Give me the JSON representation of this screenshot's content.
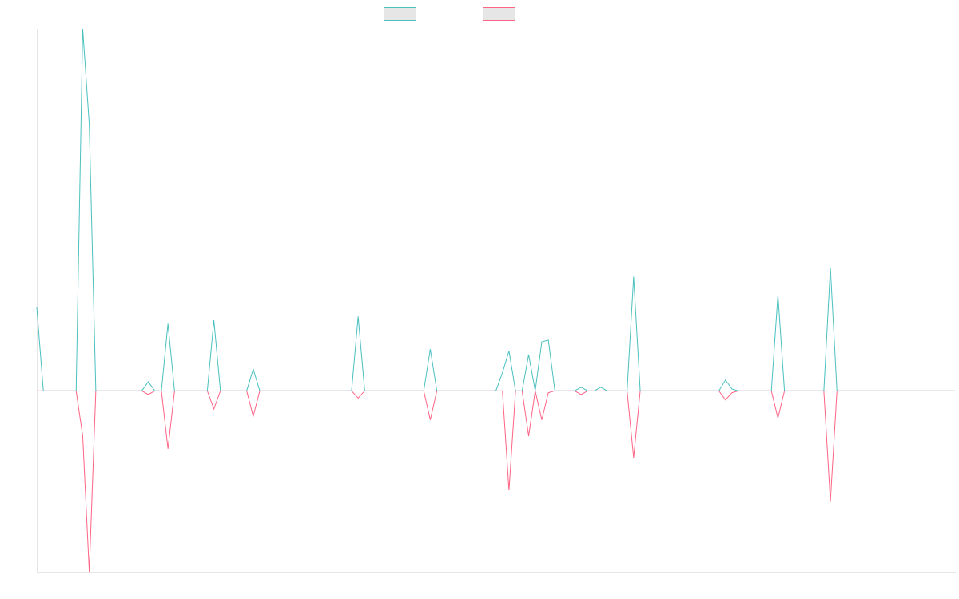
{
  "chart_data": {
    "type": "line",
    "categories": [
      null,
      null,
      null,
      null,
      null,
      null,
      null,
      null,
      null,
      null,
      null,
      null,
      null,
      null,
      null,
      null,
      null,
      null,
      null,
      null,
      null,
      null,
      null,
      null,
      null,
      null,
      null,
      null,
      null,
      null,
      null,
      null,
      null,
      null,
      null,
      null,
      null,
      null,
      null,
      null,
      null,
      null,
      null,
      null,
      null,
      null,
      null,
      null,
      null,
      null,
      null,
      null,
      null,
      null,
      null,
      null,
      null,
      null,
      null,
      null,
      null,
      null,
      null,
      null,
      null,
      null,
      null,
      null,
      null,
      null,
      null,
      null,
      null,
      null,
      null,
      null,
      null,
      null,
      null,
      null,
      null,
      null,
      null,
      null,
      null,
      null,
      null,
      null,
      null,
      null,
      null,
      null,
      null,
      null,
      null,
      null,
      null,
      null,
      null,
      null,
      null,
      null,
      null,
      null,
      null,
      null,
      null,
      null,
      null,
      null,
      null,
      null,
      null,
      null,
      null,
      null,
      null,
      null,
      null,
      null,
      null,
      null,
      null,
      null,
      null,
      null,
      null,
      null,
      null,
      null,
      null,
      null,
      null,
      null,
      null,
      null,
      null,
      null,
      null,
      null,
      null
    ],
    "series": [
      {
        "color": "#4bc0c0",
        "values": [
          46,
          0,
          0,
          0,
          0,
          0,
          0,
          200,
          147,
          0,
          0,
          0,
          0,
          0,
          0,
          0,
          0,
          5,
          0,
          0,
          37,
          0,
          0,
          0,
          0,
          0,
          0,
          39,
          0,
          0,
          0,
          0,
          0,
          12,
          0,
          0,
          0,
          0,
          0,
          0,
          0,
          0,
          0,
          0,
          0,
          0,
          0,
          0,
          0,
          41,
          0,
          0,
          0,
          0,
          0,
          0,
          0,
          0,
          0,
          0,
          23,
          0,
          0,
          0,
          0,
          0,
          0,
          0,
          0,
          0,
          0,
          10,
          22,
          0,
          0,
          20,
          0,
          27,
          28,
          0,
          0,
          0,
          0,
          2,
          0,
          0,
          2,
          0,
          0,
          0,
          0,
          63,
          0,
          0,
          0,
          0,
          0,
          0,
          0,
          0,
          0,
          0,
          0,
          0,
          0,
          6,
          1,
          0,
          0,
          0,
          0,
          0,
          0,
          53,
          0,
          0,
          0,
          0,
          0,
          0,
          0,
          68,
          0,
          0,
          0,
          0,
          0,
          0,
          0,
          0,
          0,
          0,
          0,
          0,
          0,
          0,
          0,
          0,
          0,
          0,
          0
        ]
      },
      {
        "color": "#ff6384",
        "values": [
          0,
          0,
          0,
          0,
          0,
          0,
          0,
          -25,
          -100,
          0,
          0,
          0,
          0,
          0,
          0,
          0,
          0,
          -2,
          0,
          0,
          -32,
          0,
          0,
          0,
          0,
          0,
          0,
          -10,
          0,
          0,
          0,
          0,
          0,
          -14,
          0,
          0,
          0,
          0,
          0,
          0,
          0,
          0,
          0,
          0,
          0,
          0,
          0,
          0,
          0,
          -4,
          0,
          0,
          0,
          0,
          0,
          0,
          0,
          0,
          0,
          0,
          -16,
          0,
          0,
          0,
          0,
          0,
          0,
          0,
          0,
          0,
          0,
          0,
          -55,
          0,
          0,
          -25,
          0,
          -16,
          -1,
          0,
          0,
          0,
          0,
          -2,
          0,
          0,
          0,
          0,
          0,
          0,
          0,
          -37,
          0,
          0,
          0,
          0,
          0,
          0,
          0,
          0,
          0,
          0,
          0,
          0,
          0,
          -5,
          -1,
          0,
          0,
          0,
          0,
          0,
          0,
          -15,
          0,
          0,
          0,
          0,
          0,
          0,
          0,
          -61,
          0,
          0,
          0,
          0,
          0,
          0,
          0,
          0,
          0,
          0,
          0,
          0,
          0,
          0,
          0,
          0,
          0,
          0,
          0
        ]
      }
    ],
    "ylim": [
      -100,
      200
    ],
    "grid": false
  }
}
